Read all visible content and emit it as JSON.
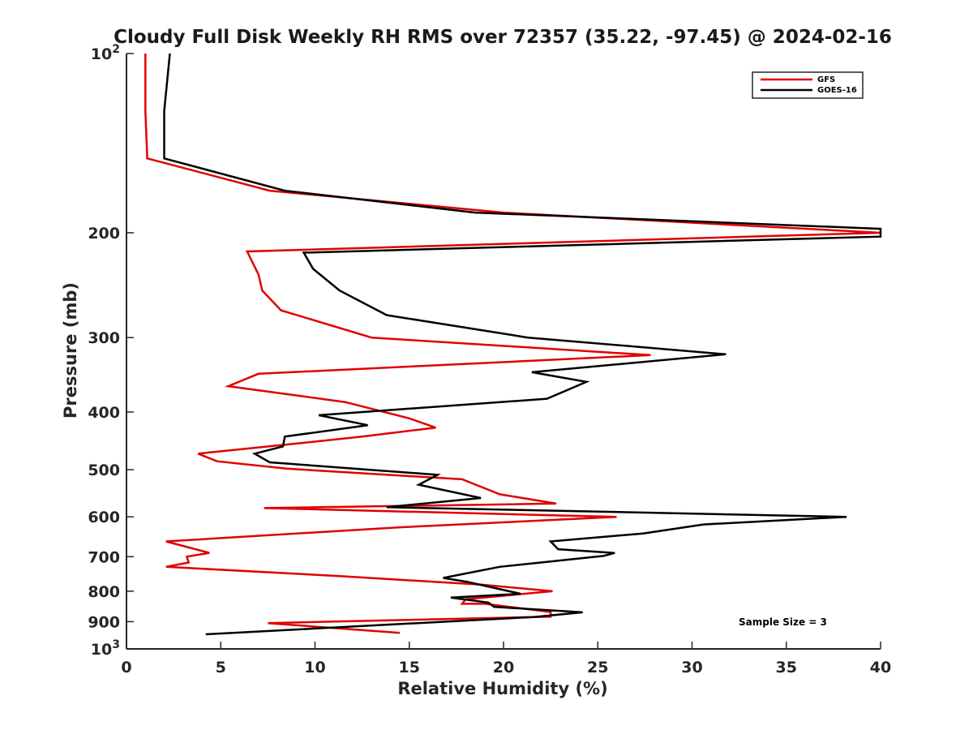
{
  "chart_data": {
    "type": "line",
    "title": "Cloudy Full Disk Weekly RH RMS over 72357 (35.22, -97.45) @ 2024-02-16",
    "xlabel": "Relative Humidity (%)",
    "ylabel": "Pressure (mb)",
    "xlim": [
      0,
      40
    ],
    "ylim": [
      100,
      1000
    ],
    "yscale": "log",
    "yreversed": true,
    "xticks": [
      0,
      5,
      10,
      15,
      20,
      25,
      30,
      35,
      40
    ],
    "yticks": [
      {
        "value": 100,
        "base": "10",
        "exp": "2"
      },
      {
        "value": 200,
        "label": "200"
      },
      {
        "value": 300,
        "label": "300"
      },
      {
        "value": 400,
        "label": "400"
      },
      {
        "value": 500,
        "label": "500"
      },
      {
        "value": 600,
        "label": "600"
      },
      {
        "value": 700,
        "label": "700"
      },
      {
        "value": 800,
        "label": "800"
      },
      {
        "value": 900,
        "label": "900"
      },
      {
        "value": 1000,
        "base": "10",
        "exp": "3"
      }
    ],
    "grid": false,
    "legend_position": "top-right",
    "annotation": "Sample Size = 3",
    "series": [
      {
        "name": "GFS",
        "color": "#e00000",
        "points": [
          [
            1.0,
            100
          ],
          [
            1.0,
            125
          ],
          [
            1.1,
            150
          ],
          [
            7.6,
            170
          ],
          [
            20.0,
            185
          ],
          [
            40.0,
            200
          ],
          [
            6.4,
            215
          ],
          [
            7.0,
            235
          ],
          [
            7.2,
            250
          ],
          [
            8.2,
            270
          ],
          [
            13.0,
            300
          ],
          [
            27.8,
            321
          ],
          [
            7.0,
            345
          ],
          [
            5.4,
            362
          ],
          [
            11.6,
            385
          ],
          [
            15.0,
            410
          ],
          [
            16.4,
            425
          ],
          [
            12.5,
            440
          ],
          [
            9.0,
            452
          ],
          [
            3.8,
            470
          ],
          [
            4.8,
            484
          ],
          [
            8.5,
            498
          ],
          [
            17.8,
            519
          ],
          [
            19.8,
            550
          ],
          [
            22.8,
            570
          ],
          [
            7.3,
            580
          ],
          [
            26.0,
            600
          ],
          [
            14.4,
            625
          ],
          [
            2.1,
            660
          ],
          [
            4.4,
            690
          ],
          [
            3.2,
            700
          ],
          [
            3.3,
            716
          ],
          [
            2.1,
            728
          ],
          [
            11.4,
            755
          ],
          [
            18.8,
            780
          ],
          [
            22.6,
            800
          ],
          [
            18.0,
            825
          ],
          [
            17.8,
            840
          ],
          [
            19.0,
            840
          ],
          [
            22.5,
            867
          ],
          [
            22.5,
            883
          ],
          [
            7.5,
            905
          ],
          [
            14.5,
            940
          ]
        ]
      },
      {
        "name": "GOES-16",
        "color": "#000000",
        "points": [
          [
            2.3,
            100
          ],
          [
            2.0,
            125
          ],
          [
            2.0,
            150
          ],
          [
            8.4,
            170
          ],
          [
            18.5,
            185
          ],
          [
            40.0,
            197
          ],
          [
            40.0,
            203
          ],
          [
            9.4,
            216
          ],
          [
            9.9,
            230
          ],
          [
            11.3,
            250
          ],
          [
            13.8,
            275
          ],
          [
            21.3,
            300
          ],
          [
            31.8,
            320
          ],
          [
            21.5,
            343
          ],
          [
            24.4,
            356
          ],
          [
            22.3,
            380
          ],
          [
            10.2,
            405
          ],
          [
            12.8,
            421
          ],
          [
            8.4,
            440
          ],
          [
            8.3,
            457
          ],
          [
            6.8,
            470
          ],
          [
            7.6,
            486
          ],
          [
            16.5,
            510
          ],
          [
            15.5,
            530
          ],
          [
            18.8,
            558
          ],
          [
            13.8,
            578
          ],
          [
            38.2,
            600
          ],
          [
            30.6,
            618
          ],
          [
            27.4,
            640
          ],
          [
            22.5,
            660
          ],
          [
            22.9,
            680
          ],
          [
            25.9,
            690
          ],
          [
            25.3,
            698
          ],
          [
            19.8,
            728
          ],
          [
            16.8,
            760
          ],
          [
            18.1,
            772
          ],
          [
            20.9,
            808
          ],
          [
            17.2,
            820
          ],
          [
            19.2,
            836
          ],
          [
            19.5,
            850
          ],
          [
            24.2,
            868
          ],
          [
            21.6,
            884
          ],
          [
            4.2,
            945
          ]
        ]
      }
    ]
  }
}
